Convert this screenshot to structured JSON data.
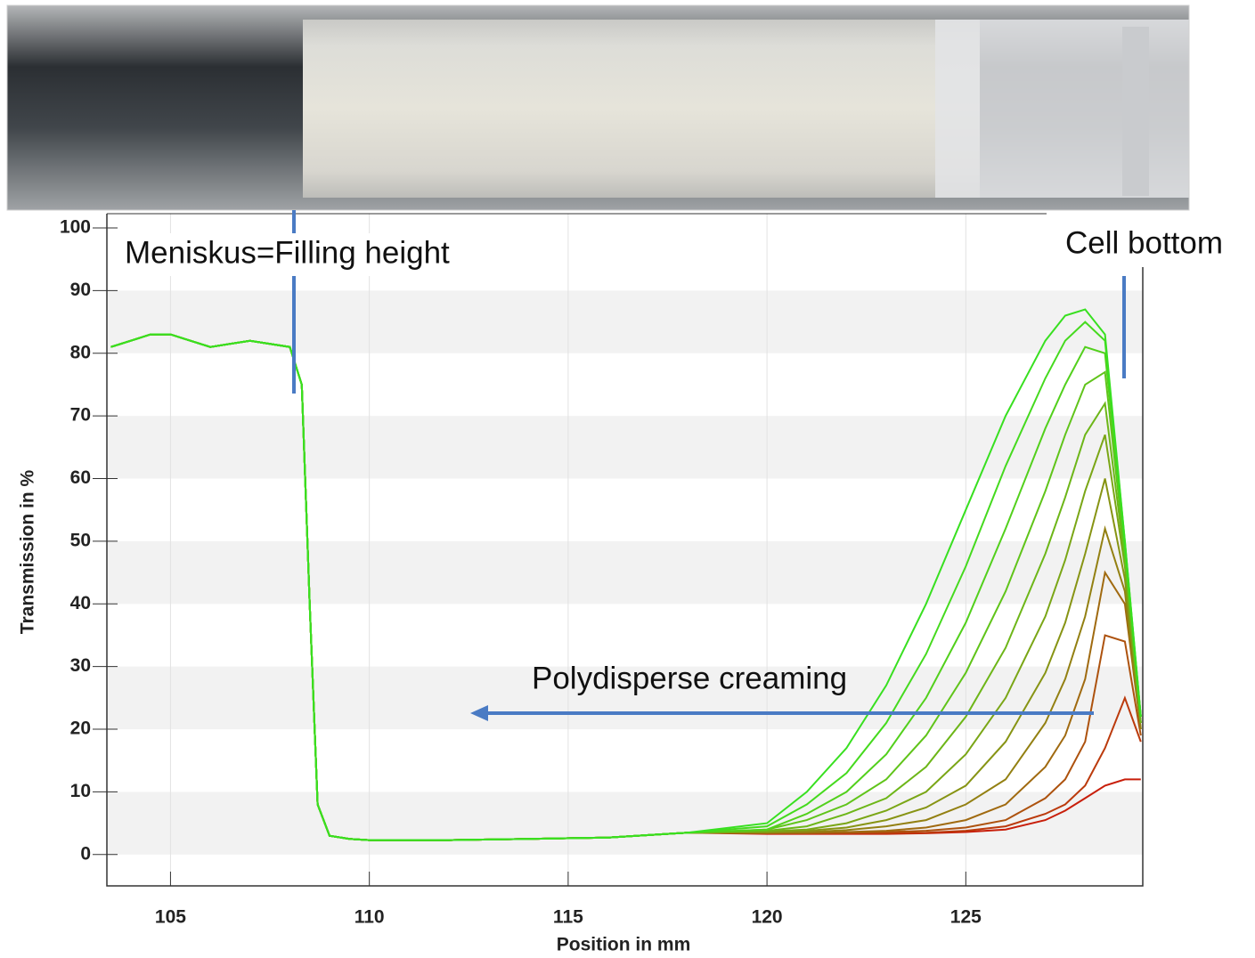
{
  "chart_data": {
    "type": "line",
    "ylabel": "Transmission in %",
    "xlabel": "Position in mm",
    "annotations": [
      "Meniskus=Filling height",
      "Cell bottom",
      "Polydisperse creaming"
    ],
    "xlim": [
      103.4,
      129.45
    ],
    "ylim": [
      -5,
      100
    ],
    "xticks": [
      105,
      110,
      115,
      120,
      125
    ],
    "yticks": [
      0,
      10,
      20,
      30,
      40,
      50,
      60,
      70,
      80,
      90,
      100
    ],
    "grid": true,
    "x": [
      103.5,
      104,
      104.5,
      105,
      105.5,
      106,
      107,
      108,
      108.3,
      108.5,
      108.7,
      109,
      109.5,
      110,
      112,
      114,
      116,
      118,
      120,
      121,
      122,
      123,
      124,
      125,
      126,
      127,
      127.5,
      128,
      128.5,
      129,
      129.4
    ],
    "series": [
      {
        "color": "#c81e0a",
        "values": [
          81,
          82,
          83,
          83,
          82,
          81,
          82,
          81,
          75,
          40,
          8,
          3,
          2.5,
          2.3,
          2.3,
          2.5,
          2.7,
          3.5,
          3.3,
          3.3,
          3.3,
          3.3,
          3.4,
          3.6,
          4,
          5.5,
          7,
          9,
          11,
          12,
          12
        ]
      },
      {
        "color": "#bb3a0c",
        "values": [
          81,
          82,
          83,
          83,
          82,
          81,
          82,
          81,
          75,
          40,
          8,
          3,
          2.5,
          2.3,
          2.3,
          2.5,
          2.7,
          3.5,
          3.4,
          3.4,
          3.4,
          3.4,
          3.5,
          3.8,
          4.5,
          6.5,
          8,
          11,
          17,
          25,
          18
        ]
      },
      {
        "color": "#ad520e",
        "values": [
          81,
          82,
          83,
          83,
          82,
          81,
          82,
          81,
          75,
          40,
          8,
          3,
          2.5,
          2.3,
          2.3,
          2.5,
          2.7,
          3.5,
          3.4,
          3.4,
          3.5,
          3.6,
          3.8,
          4.3,
          5.5,
          9,
          12,
          18,
          35,
          34,
          19
        ]
      },
      {
        "color": "#a06a10",
        "values": [
          81,
          82,
          83,
          83,
          82,
          81,
          82,
          81,
          75,
          40,
          8,
          3,
          2.5,
          2.3,
          2.3,
          2.5,
          2.7,
          3.5,
          3.5,
          3.5,
          3.6,
          3.8,
          4.3,
          5.5,
          8,
          14,
          19,
          28,
          45,
          40,
          20
        ]
      },
      {
        "color": "#938012",
        "values": [
          81,
          82,
          83,
          83,
          82,
          81,
          82,
          81,
          75,
          40,
          8,
          3,
          2.5,
          2.3,
          2.3,
          2.5,
          2.7,
          3.5,
          3.5,
          3.6,
          3.9,
          4.5,
          5.5,
          8,
          12,
          21,
          28,
          38,
          52,
          42,
          20
        ]
      },
      {
        "color": "#879414",
        "values": [
          81,
          82,
          83,
          83,
          82,
          81,
          82,
          81,
          75,
          40,
          8,
          3,
          2.5,
          2.3,
          2.3,
          2.5,
          2.7,
          3.5,
          3.6,
          3.8,
          4.3,
          5.5,
          7.5,
          11,
          18,
          29,
          37,
          48,
          60,
          44,
          21
        ]
      },
      {
        "color": "#7aa616",
        "values": [
          81,
          82,
          83,
          83,
          82,
          81,
          82,
          81,
          75,
          40,
          8,
          3,
          2.5,
          2.3,
          2.3,
          2.5,
          2.7,
          3.5,
          3.7,
          4,
          5,
          7,
          10,
          16,
          25,
          38,
          47,
          58,
          67,
          46,
          21
        ]
      },
      {
        "color": "#6db618",
        "values": [
          81,
          82,
          83,
          83,
          82,
          81,
          82,
          81,
          75,
          40,
          8,
          3,
          2.5,
          2.3,
          2.3,
          2.5,
          2.7,
          3.5,
          3.8,
          4.5,
          6.5,
          9,
          14,
          22,
          33,
          48,
          57,
          67,
          72,
          47,
          21
        ]
      },
      {
        "color": "#60c41a",
        "values": [
          81,
          82,
          83,
          83,
          82,
          81,
          82,
          81,
          75,
          40,
          8,
          3,
          2.5,
          2.3,
          2.3,
          2.5,
          2.7,
          3.5,
          4,
          5.5,
          8,
          12,
          19,
          29,
          42,
          58,
          67,
          75,
          77,
          48,
          22
        ]
      },
      {
        "color": "#52d01c",
        "values": [
          81,
          82,
          83,
          83,
          82,
          81,
          82,
          81,
          75,
          40,
          8,
          3,
          2.5,
          2.3,
          2.3,
          2.5,
          2.7,
          3.5,
          4,
          6.5,
          10,
          16,
          25,
          37,
          52,
          68,
          75,
          81,
          80,
          49,
          22
        ]
      },
      {
        "color": "#45da1e",
        "values": [
          81,
          82,
          83,
          83,
          82,
          81,
          82,
          81,
          75,
          40,
          8,
          3,
          2.5,
          2.3,
          2.3,
          2.5,
          2.7,
          3.5,
          4.5,
          8,
          13,
          21,
          32,
          46,
          62,
          76,
          82,
          85,
          82,
          50,
          22
        ]
      },
      {
        "color": "#38e020",
        "values": [
          81,
          82,
          83,
          83,
          82,
          81,
          82,
          81,
          75,
          40,
          8,
          3,
          2.5,
          2.3,
          2.3,
          2.5,
          2.7,
          3.5,
          5,
          10,
          17,
          27,
          40,
          55,
          70,
          82,
          86,
          87,
          83,
          50,
          22
        ]
      }
    ]
  }
}
